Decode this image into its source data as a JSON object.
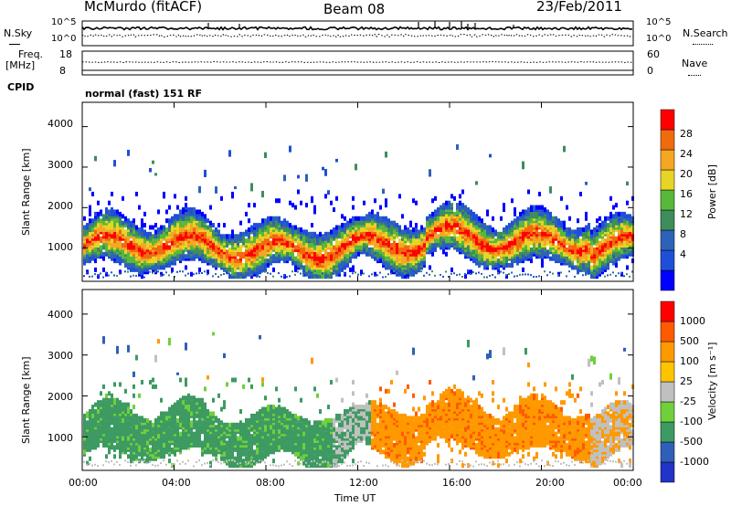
{
  "header": {
    "station": "McMurdo (fitACF)",
    "beam": "Beam 08",
    "date": "23/Feb/2011"
  },
  "top_panels": {
    "nsky_label": "N.Sky",
    "nsearch_label": "N.Search",
    "left_ticks": [
      "10^5",
      "10^0"
    ],
    "right_ticks": [
      "10^5",
      "10^0"
    ],
    "freq_label_1": "Freq.",
    "freq_label_2": "[MHz]",
    "freq_ticks": [
      "18",
      "8"
    ],
    "nave_label": "Nave",
    "nave_ticks": [
      "60",
      "0"
    ],
    "cpid_label": "CPID",
    "cpid_text": "normal (fast) 151 RF"
  },
  "colors": {
    "power": [
      "#0000ff",
      "#1f4fd8",
      "#2e62b8",
      "#3f8c5c",
      "#58b83a",
      "#e6d426",
      "#f5a623",
      "#f06a0e",
      "#ff0000"
    ],
    "velocity": [
      "#ff0000",
      "#ff5a00",
      "#ff9900",
      "#ffc400",
      "#c0c0c0",
      "#6fd03a",
      "#3d9a62",
      "#2f5fb8",
      "#2233c8"
    ]
  },
  "chart_data": [
    {
      "type": "heatmap",
      "name": "power",
      "ylabel": "Slant Range [km]",
      "xlabel": "",
      "ylim": [
        180,
        4600
      ],
      "xlim": [
        0,
        24
      ],
      "y_ticks": [
        "1000",
        "2000",
        "3000",
        "4000"
      ],
      "colorbar": {
        "label": "Power [dB]",
        "ticks": [
          "4",
          "8",
          "12",
          "16",
          "20",
          "24",
          "28"
        ]
      }
    },
    {
      "type": "heatmap",
      "name": "velocity",
      "ylabel": "Slant Range [km]",
      "xlabel": "Time UT",
      "ylim": [
        180,
        4600
      ],
      "xlim": [
        0,
        24
      ],
      "y_ticks": [
        "1000",
        "2000",
        "3000",
        "4000"
      ],
      "x_ticks": [
        "00:00",
        "04:00",
        "08:00",
        "12:00",
        "16:00",
        "20:00",
        "00:00"
      ],
      "colorbar": {
        "label": "Velocity [m s⁻¹]",
        "ticks": [
          "-1000",
          "-500",
          "-100",
          "-25",
          "25",
          "100",
          "500",
          "1000"
        ]
      }
    }
  ]
}
